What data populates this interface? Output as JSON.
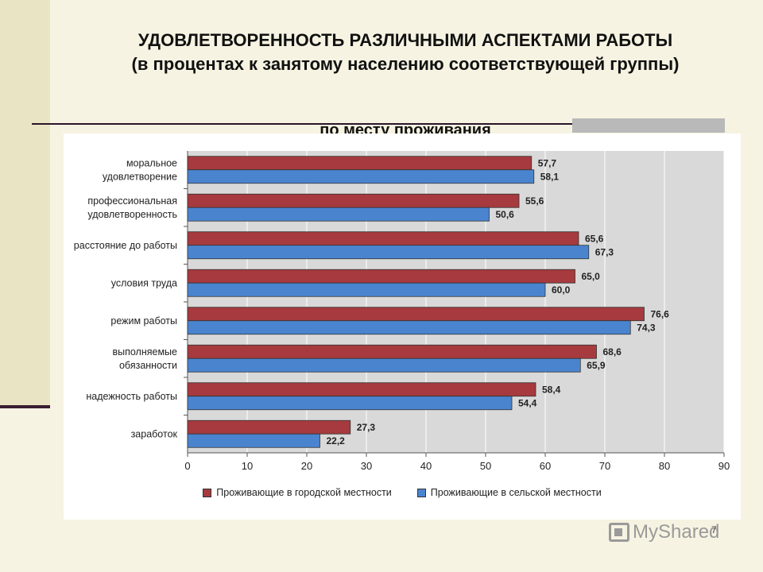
{
  "title": {
    "line1": "УДОВЛЕТВОРЕННОСТЬ РАЗЛИЧНЫМИ АСПЕКТАМИ РАБОТЫ",
    "line2": "(в процентах к занятому населению соответствующей группы)",
    "subtitle": "по месту проживания"
  },
  "page_number": "7",
  "watermark": "MyShared",
  "colors": {
    "urban": "#a63a3e",
    "rural": "#4a84cf",
    "plot_bg": "#d9d9d9",
    "grid": "#ffffff"
  },
  "chart_data": {
    "type": "bar",
    "orientation": "horizontal",
    "categories": [
      [
        "моральное",
        "удовлетворение"
      ],
      [
        "профессиональная",
        "удовлетворенность"
      ],
      [
        "расстояние до работы"
      ],
      [
        "условия труда"
      ],
      [
        "режим работы"
      ],
      [
        "выполняемые",
        "обязанности"
      ],
      [
        "надежность работы"
      ],
      [
        "заработок"
      ]
    ],
    "series": [
      {
        "name": "Проживающие в городской местности",
        "color": "#a63a3e",
        "values": [
          57.7,
          55.6,
          65.6,
          65.0,
          76.6,
          68.6,
          58.4,
          27.3
        ],
        "labels": [
          "57,7",
          "55,6",
          "65,6",
          "65,0",
          "76,6",
          "68,6",
          "58,4",
          "27,3"
        ]
      },
      {
        "name": "Проживающие в сельской местности",
        "color": "#4a84cf",
        "values": [
          58.1,
          50.6,
          67.3,
          60.0,
          74.3,
          65.9,
          54.4,
          22.2
        ],
        "labels": [
          "58,1",
          "50,6",
          "67,3",
          "60,0",
          "74,3",
          "65,9",
          "54,4",
          "22,2"
        ]
      }
    ],
    "xlim": [
      0,
      90
    ],
    "xticks": [
      0,
      10,
      20,
      30,
      40,
      50,
      60,
      70,
      80,
      90
    ],
    "grid": true,
    "legend_position": "bottom"
  }
}
